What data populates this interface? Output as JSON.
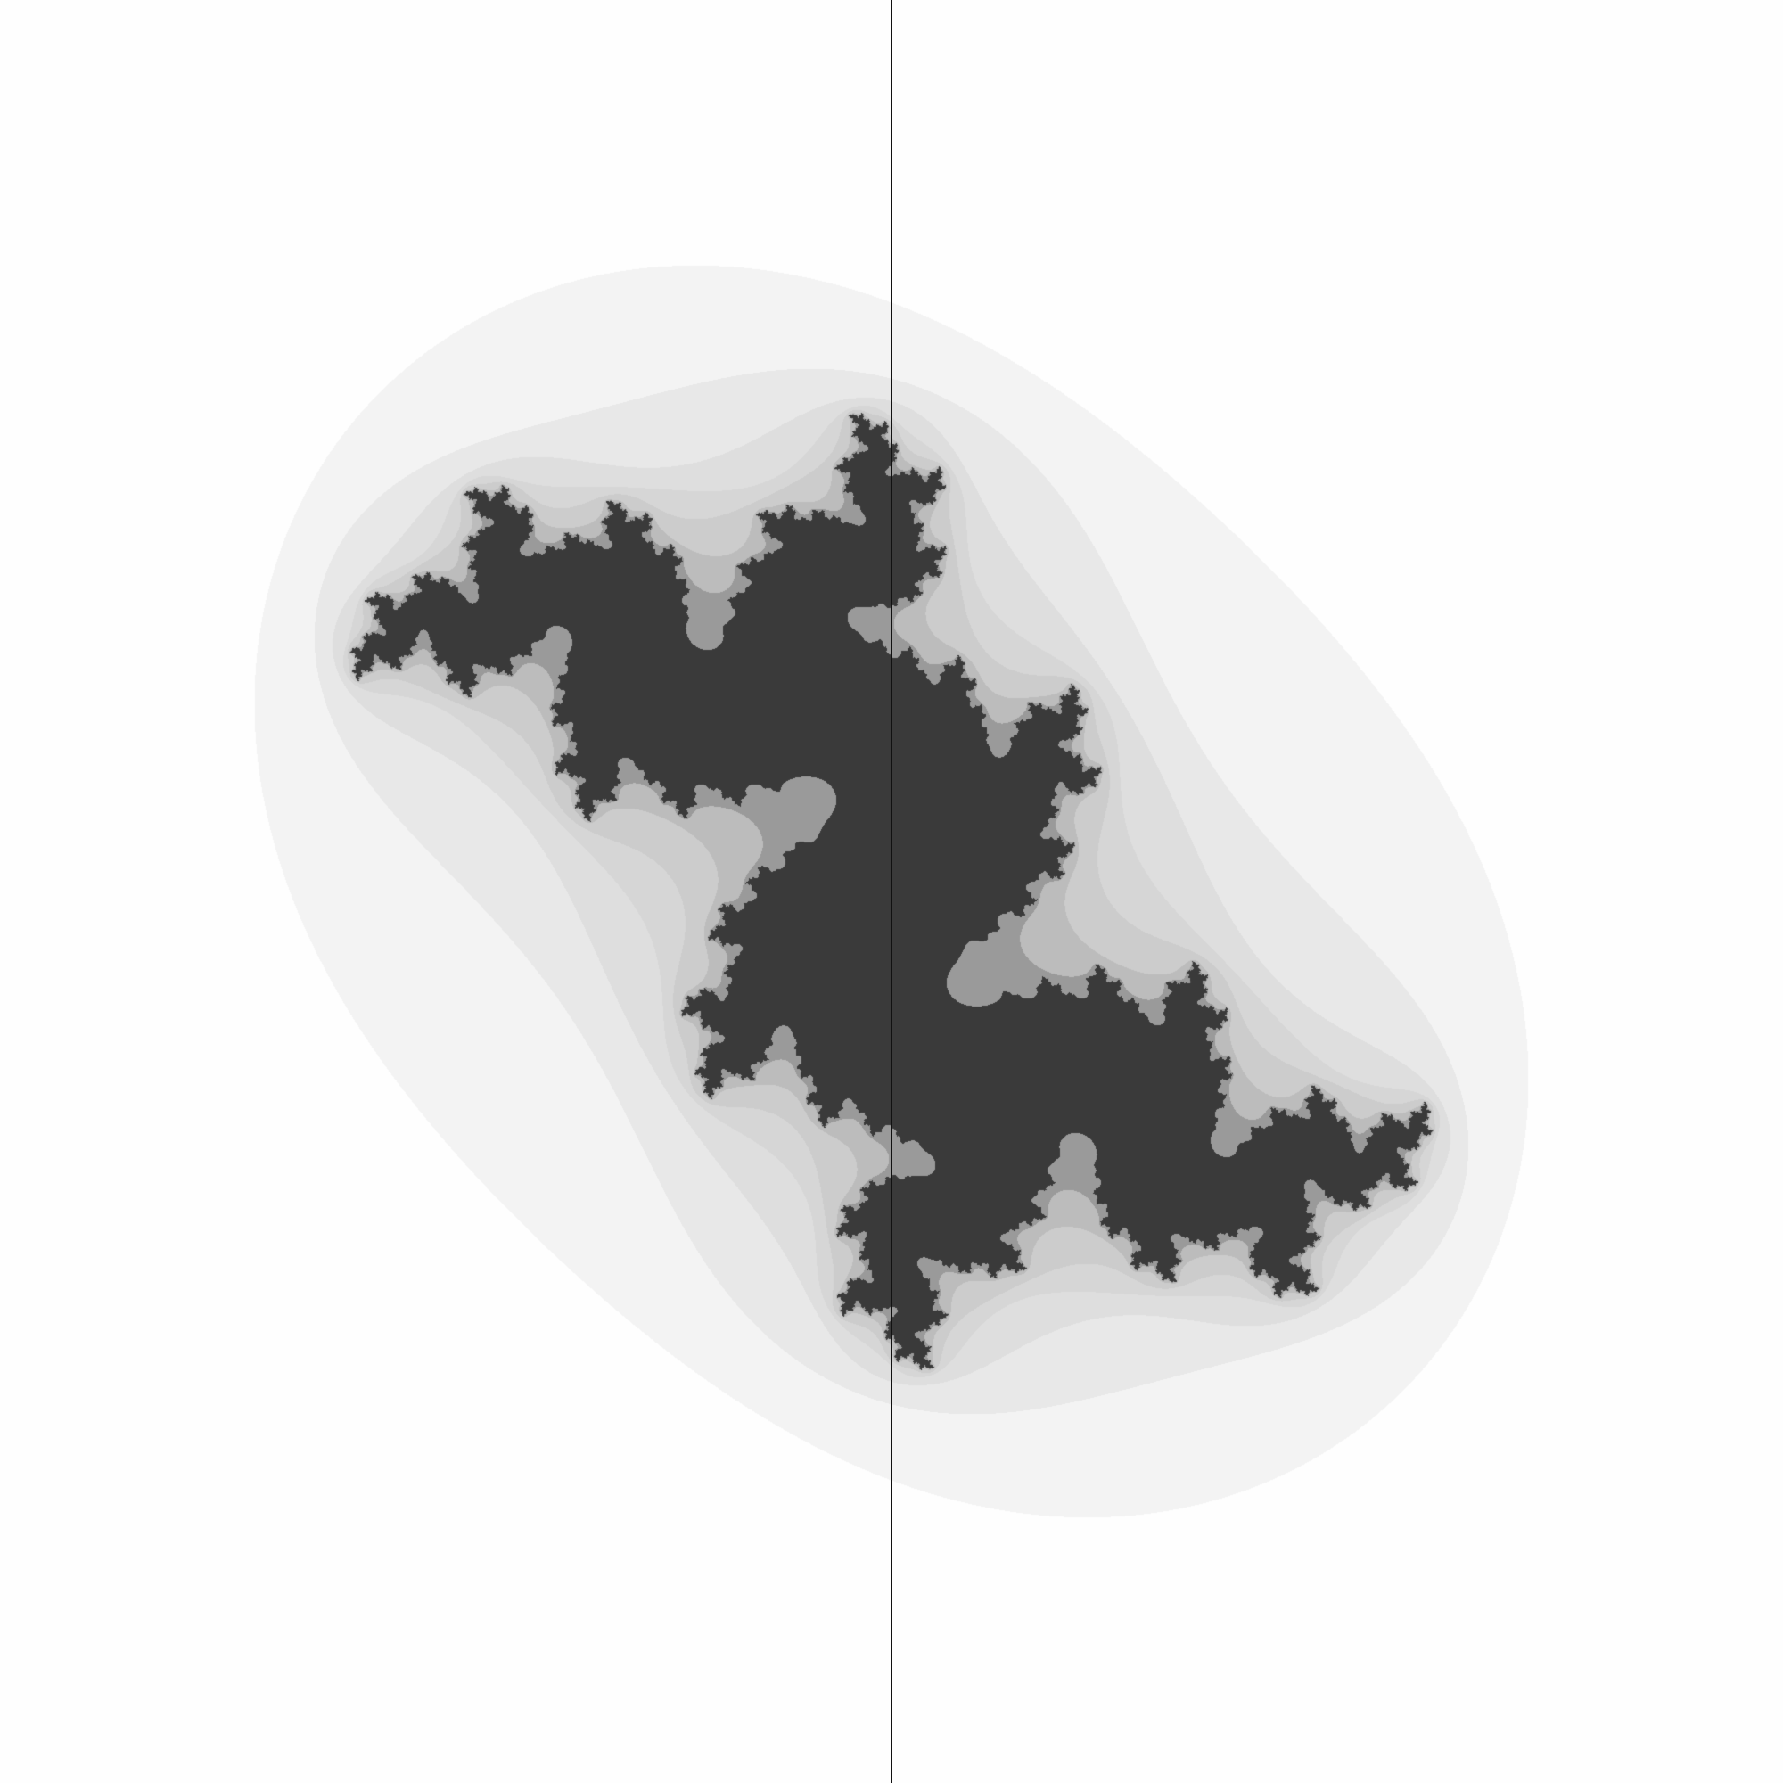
{
  "image": {
    "subject": "julia-set-escape-time-shading",
    "background_color": "#fefefe",
    "axis_color": "#111111",
    "shade_darkest": "#3a3a3a",
    "shade_lightest": "#f3f3f3"
  },
  "fractal": {
    "c_real": -0.04,
    "c_imag": 0.7,
    "view_x_range": [
      -2.05,
      2.05
    ],
    "view_y_range": [
      -2.05,
      2.05
    ],
    "max_iter": 60,
    "bands": [
      {
        "max_iter": 1,
        "gray": "#fefefe"
      },
      {
        "max_iter": 2,
        "gray": "#f3f3f3"
      },
      {
        "max_iter": 3,
        "gray": "#e8e8e8"
      },
      {
        "max_iter": 4,
        "gray": "#dedede"
      },
      {
        "max_iter": 5,
        "gray": "#d6d6d6"
      },
      {
        "max_iter": 7,
        "gray": "#cccccc"
      },
      {
        "max_iter": 10,
        "gray": "#bcbcbc"
      },
      {
        "max_iter": 16,
        "gray": "#9a9a9a"
      },
      {
        "max_iter": 60,
        "gray": "#3a3a3a"
      }
    ]
  }
}
